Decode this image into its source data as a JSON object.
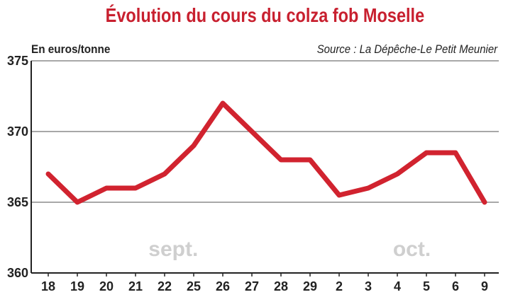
{
  "chart_data": {
    "type": "line",
    "title": "Évolution du cours du colza fob Moselle",
    "ylabel": "En euros/tonne",
    "source": "Source : La Dépêche-Le Petit Meunier",
    "categories": [
      "18",
      "19",
      "20",
      "21",
      "22",
      "25",
      "26",
      "27",
      "28",
      "29",
      "2",
      "3",
      "4",
      "5",
      "6",
      "9"
    ],
    "series": [
      {
        "values": [
          367,
          365,
          366,
          366,
          367,
          369,
          372,
          370,
          368,
          368,
          365.5,
          366,
          367,
          368.5,
          368.5,
          365
        ]
      }
    ],
    "ylim": [
      360,
      375
    ],
    "yticks": [
      "360",
      "365",
      "370",
      "375"
    ],
    "months": [
      {
        "label": "sept.",
        "at_category": 4.3
      },
      {
        "label": "oct.",
        "at_category": 12.5
      }
    ],
    "grid": true,
    "color": "#d1232f"
  }
}
